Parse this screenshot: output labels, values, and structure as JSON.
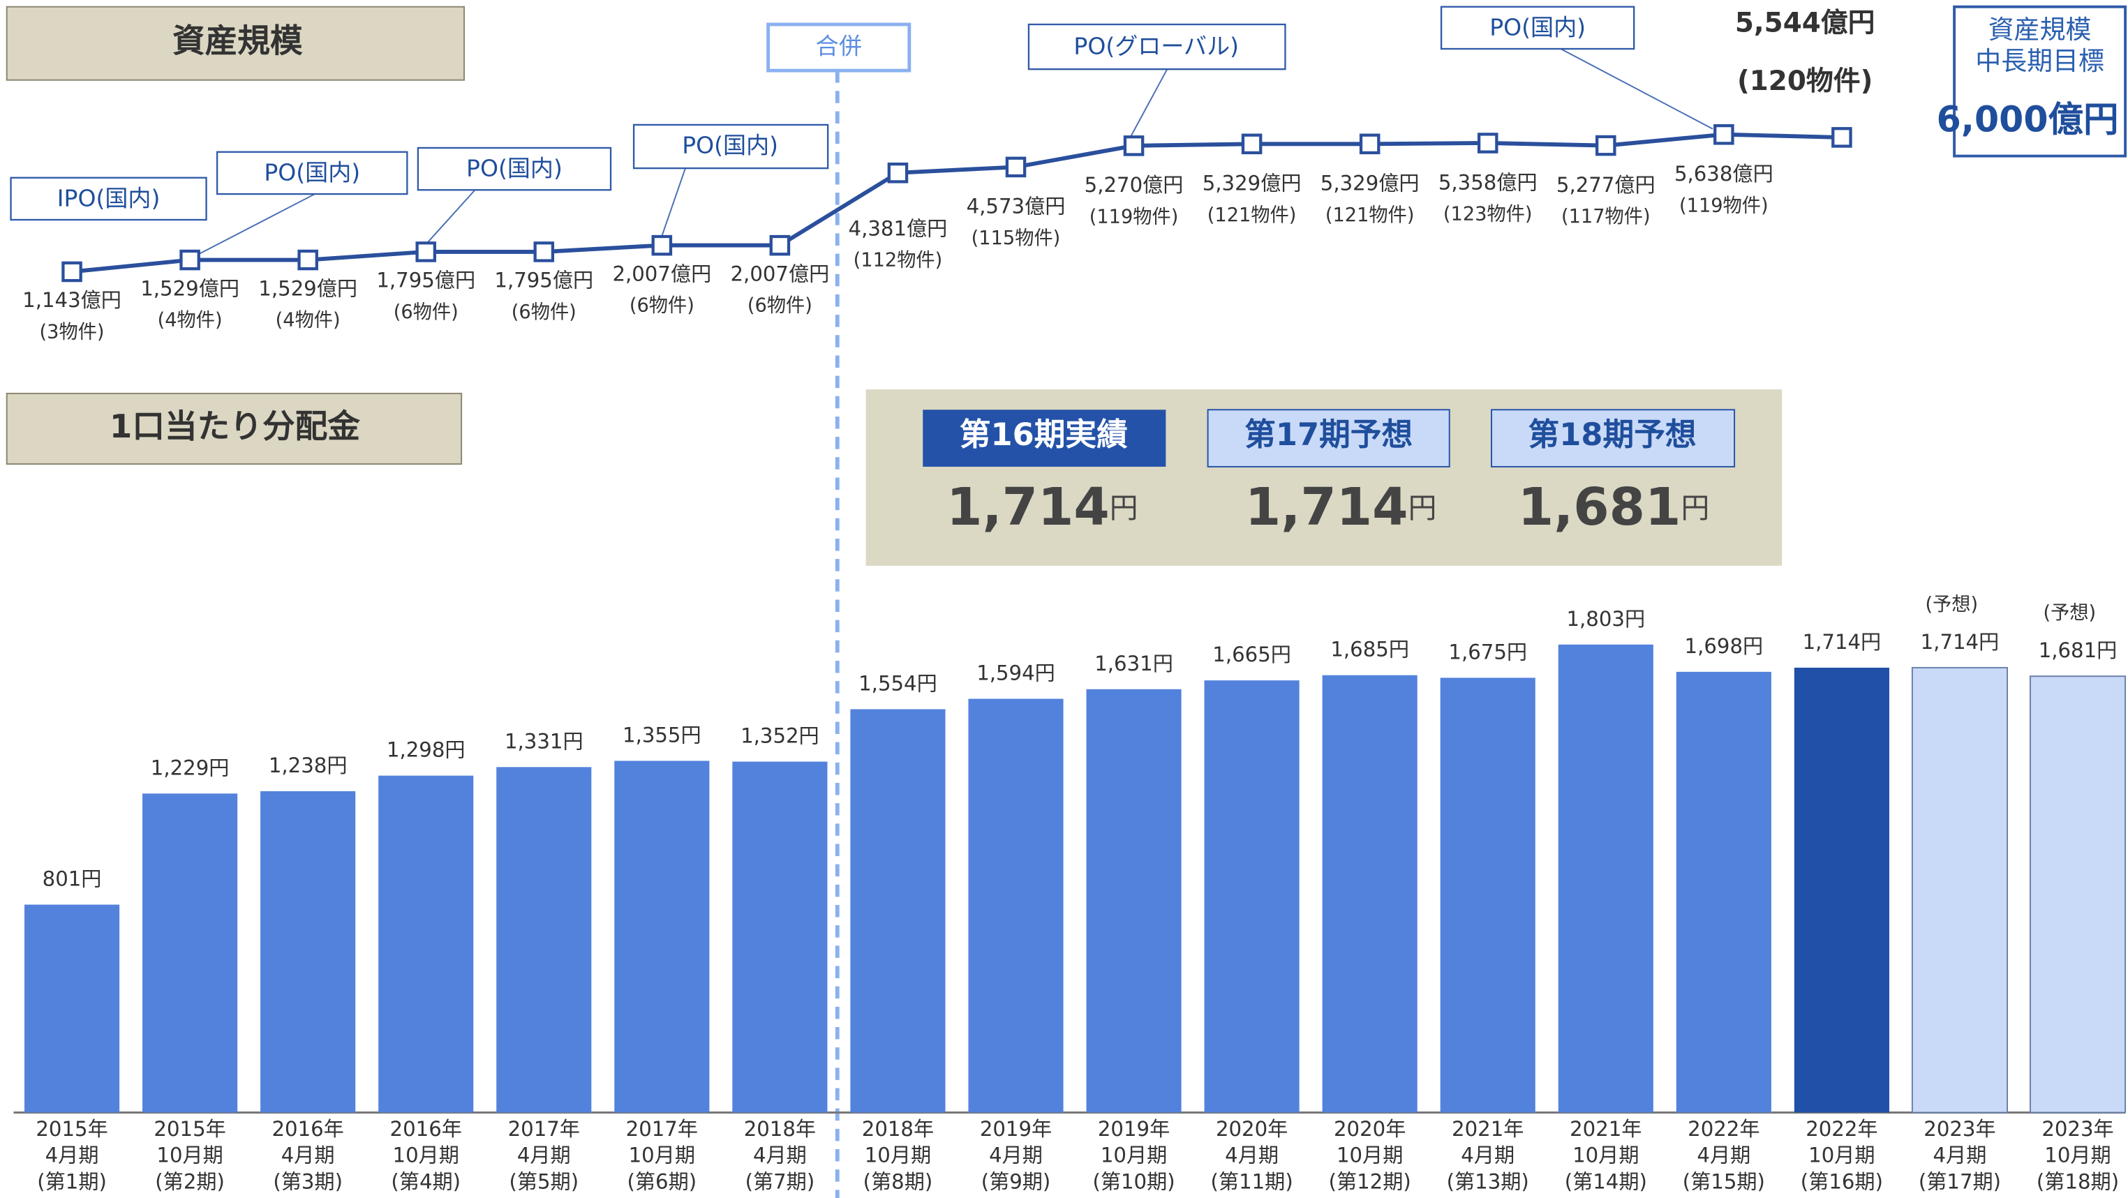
{
  "chart_data": [
    {
      "type": "line",
      "title": "資産規模",
      "color": "#2a4f9c",
      "ylim": [
        0,
        6000
      ],
      "values": [
        1143,
        1529,
        1529,
        1795,
        1795,
        2007,
        2007,
        4381,
        4573,
        5270,
        5329,
        5329,
        5358,
        5277,
        5638,
        5544
      ],
      "value_labels": [
        "1,143億円",
        "1,529億円",
        "1,529億円",
        "1,795億円",
        "1,795億円",
        "2,007億円",
        "2,007億円",
        "4,381億円",
        "4,573億円",
        "5,270億円",
        "5,329億円",
        "5,329億円",
        "5,358億円",
        "5,277億円",
        "5,638億円",
        "5,544億円"
      ],
      "property_labels": [
        "(3物件)",
        "(4物件)",
        "(4物件)",
        "(6物件)",
        "(6物件)",
        "(6物件)",
        "(6物件)",
        "(112物件)",
        "(115物件)",
        "(119物件)",
        "(121物件)",
        "(121物件)",
        "(123物件)",
        "(117物件)",
        "(119物件)",
        "(120物件)"
      ]
    },
    {
      "type": "bar",
      "title": "1口当たり分配金",
      "ylim": [
        0,
        2000
      ],
      "categories": [
        [
          "2015年",
          "4月期",
          "(第1期)"
        ],
        [
          "2015年",
          "10月期",
          "(第2期)"
        ],
        [
          "2016年",
          "4月期",
          "(第3期)"
        ],
        [
          "2016年",
          "10月期",
          "(第4期)"
        ],
        [
          "2017年",
          "4月期",
          "(第5期)"
        ],
        [
          "2017年",
          "10月期",
          "(第6期)"
        ],
        [
          "2018年",
          "4月期",
          "(第7期)"
        ],
        [
          "2018年",
          "10月期",
          "(第8期)"
        ],
        [
          "2019年",
          "4月期",
          "(第9期)"
        ],
        [
          "2019年",
          "10月期",
          "(第10期)"
        ],
        [
          "2020年",
          "4月期",
          "(第11期)"
        ],
        [
          "2020年",
          "10月期",
          "(第12期)"
        ],
        [
          "2021年",
          "4月期",
          "(第13期)"
        ],
        [
          "2021年",
          "10月期",
          "(第14期)"
        ],
        [
          "2022年",
          "4月期",
          "(第15期)"
        ],
        [
          "2022年",
          "10月期",
          "(第16期)"
        ],
        [
          "2023年",
          "4月期",
          "(第17期)"
        ],
        [
          "2023年",
          "10月期",
          "(第18期)"
        ]
      ],
      "values": [
        801,
        1229,
        1238,
        1298,
        1331,
        1355,
        1352,
        1554,
        1594,
        1631,
        1665,
        1685,
        1675,
        1803,
        1698,
        1714,
        1714,
        1681
      ],
      "value_labels": [
        "801円",
        "1,229円",
        "1,238円",
        "1,298円",
        "1,331円",
        "1,355円",
        "1,352円",
        "1,554円",
        "1,594円",
        "1,631円",
        "1,665円",
        "1,685円",
        "1,675円",
        "1,803円",
        "1,698円",
        "1,714円",
        "1,714円",
        "1,681円"
      ],
      "note_labels": [
        null,
        null,
        null,
        null,
        null,
        null,
        null,
        null,
        null,
        null,
        null,
        null,
        null,
        null,
        null,
        null,
        "(予想)",
        "(予想)"
      ],
      "colors": [
        "#5282dc",
        "#5282dc",
        "#5282dc",
        "#5282dc",
        "#5282dc",
        "#5282dc",
        "#5282dc",
        "#5282dc",
        "#5282dc",
        "#5282dc",
        "#5282dc",
        "#5282dc",
        "#5282dc",
        "#5282dc",
        "#5282dc",
        "#2050a8",
        "#c9daf8",
        "#c9daf8"
      ]
    }
  ],
  "events": [
    "IPO(国内)",
    "PO(国内)",
    "PO(国内)",
    "PO(国内)",
    "合併",
    "PO(グローバル)",
    "PO(国内)"
  ],
  "target": {
    "line1": "資産規模",
    "line2": "中長期目標",
    "value": "6,000億円"
  },
  "summary": [
    {
      "label": "第16期実績",
      "value": "1,714",
      "unit": "円"
    },
    {
      "label": "第17期予想",
      "value": "1,714",
      "unit": "円"
    },
    {
      "label": "第18期予想",
      "value": "1,681",
      "unit": "円"
    }
  ]
}
